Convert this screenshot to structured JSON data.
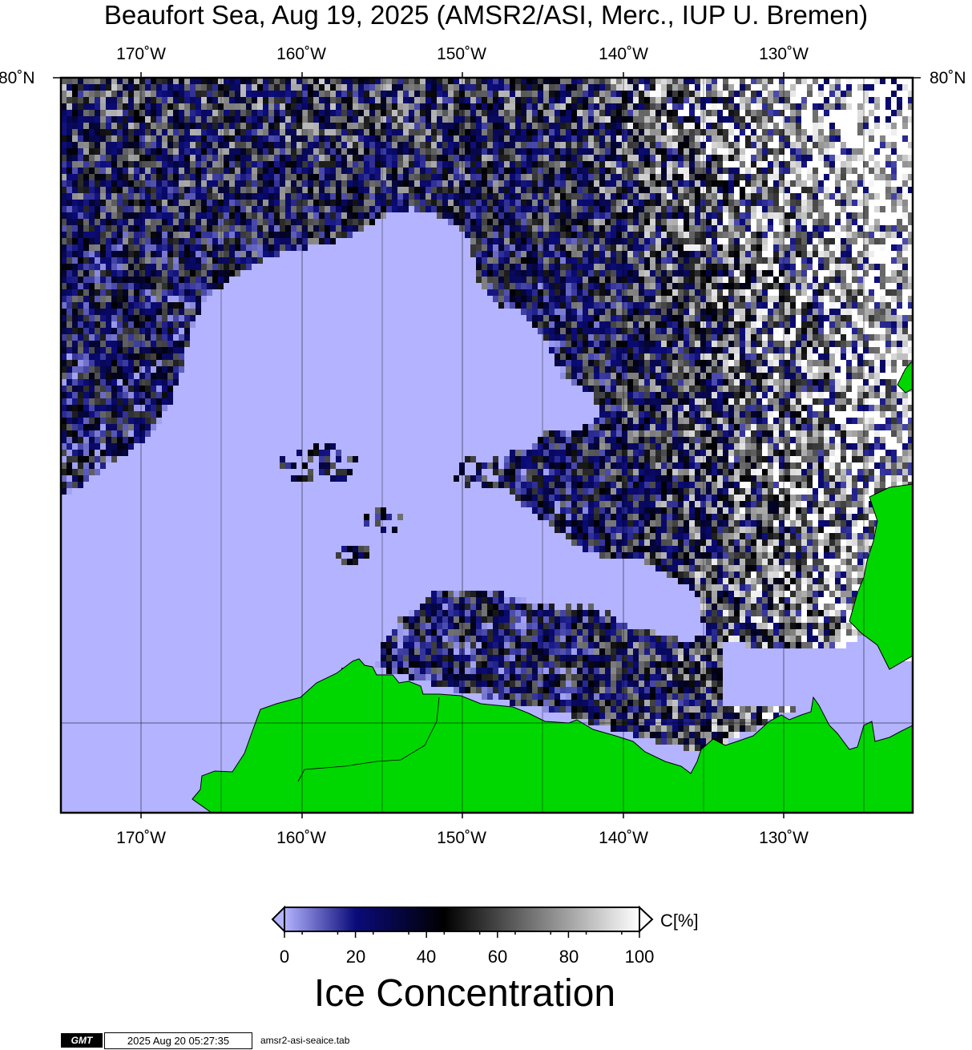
{
  "title": "Beaufort Sea, Aug 19, 2025 (AMSR2/ASI, Merc., IUP U. Bremen)",
  "longitude_labels": [
    "170˚W",
    "160˚W",
    "150˚W",
    "140˚W",
    "130˚W"
  ],
  "latitude_label": "80˚N",
  "colors": {
    "open_water": "#b3b3ff",
    "land": "#00d700",
    "low_ice": "#0b0b7a",
    "mid_ice": "#000000",
    "high_ice": "#ffffff"
  },
  "colorbar": {
    "ticks": [
      "0",
      "20",
      "40",
      "60",
      "80",
      "100"
    ],
    "unit": "C[%]",
    "title": "Ice Concentration"
  },
  "footer": {
    "logo": "GMT",
    "timestamp": "2025 Aug 20 05:27:35",
    "table": "amsr2-asi-seaice.tab"
  }
}
